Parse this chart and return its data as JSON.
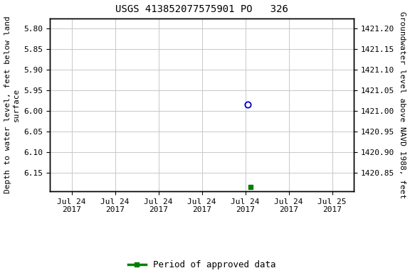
{
  "title": "USGS 413852077575901 PO   326",
  "ylabel_left": "Depth to water level, feet below land\nsurface",
  "ylabel_right": "Groundwater level above NAVD 1988, feet",
  "ylim_left": [
    5.775,
    6.195
  ],
  "ylim_right_top": 1421.2,
  "ylim_right_bottom": 1420.85,
  "yticks_left": [
    5.8,
    5.85,
    5.9,
    5.95,
    6.0,
    6.05,
    6.1,
    6.15
  ],
  "yticks_right": [
    1421.2,
    1421.15,
    1421.1,
    1421.05,
    1421.0,
    1420.95,
    1420.9,
    1420.85
  ],
  "xtick_labels": [
    "Jul 24\n2017",
    "Jul 24\n2017",
    "Jul 24\n2017",
    "Jul 24\n2017",
    "Jul 24\n2017",
    "Jul 24\n2017",
    "Jul 25\n2017"
  ],
  "xtick_positions": [
    0,
    1,
    2,
    3,
    4,
    5,
    6
  ],
  "blue_point_x": 4.05,
  "blue_point_y": 5.985,
  "green_point_x": 4.12,
  "green_point_y": 6.185,
  "legend_label": "Period of approved data",
  "legend_color": "#008000",
  "blue_color": "#0000CD",
  "background_color": "#ffffff",
  "grid_color": "#c8c8c8"
}
